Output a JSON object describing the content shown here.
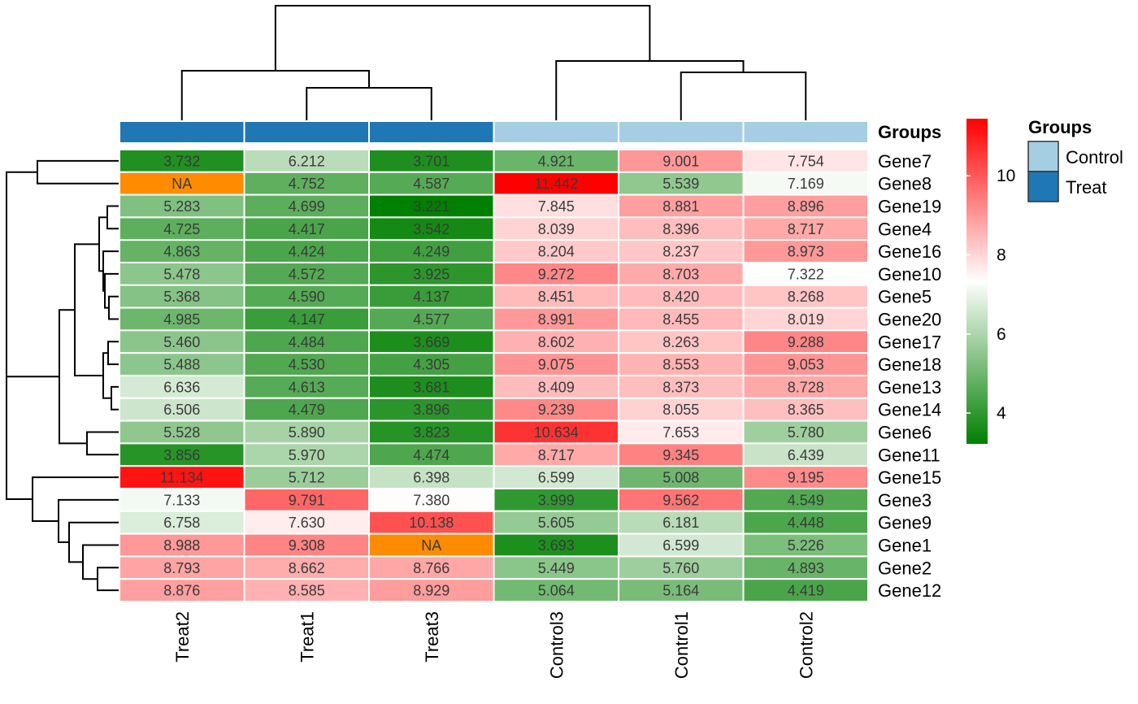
{
  "chart_data": {
    "type": "heatmap",
    "rows": [
      "Gene7",
      "Gene8",
      "Gene19",
      "Gene4",
      "Gene16",
      "Gene10",
      "Gene5",
      "Gene20",
      "Gene17",
      "Gene18",
      "Gene13",
      "Gene14",
      "Gene6",
      "Gene11",
      "Gene15",
      "Gene3",
      "Gene9",
      "Gene1",
      "Gene2",
      "Gene12"
    ],
    "columns": [
      "Treat2",
      "Treat1",
      "Treat3",
      "Control3",
      "Control1",
      "Control2"
    ],
    "values": [
      [
        3.732,
        6.212,
        3.701,
        4.921,
        9.001,
        7.754
      ],
      [
        null,
        4.752,
        4.587,
        11.442,
        5.539,
        7.169
      ],
      [
        5.283,
        4.699,
        3.221,
        7.845,
        8.881,
        8.896
      ],
      [
        4.725,
        4.417,
        3.542,
        8.039,
        8.396,
        8.717
      ],
      [
        4.863,
        4.424,
        4.249,
        8.204,
        8.237,
        8.973
      ],
      [
        5.478,
        4.572,
        3.925,
        9.272,
        8.703,
        7.322
      ],
      [
        5.368,
        4.59,
        4.137,
        8.451,
        8.42,
        8.268
      ],
      [
        4.985,
        4.147,
        4.577,
        8.991,
        8.455,
        8.019
      ],
      [
        5.46,
        4.484,
        3.669,
        8.602,
        8.263,
        9.288
      ],
      [
        5.488,
        4.53,
        4.305,
        9.075,
        8.553,
        9.053
      ],
      [
        6.636,
        4.613,
        3.681,
        8.409,
        8.373,
        8.728
      ],
      [
        6.506,
        4.479,
        3.896,
        9.239,
        8.055,
        8.365
      ],
      [
        5.528,
        5.89,
        3.823,
        10.634,
        7.653,
        5.78
      ],
      [
        3.856,
        5.97,
        4.474,
        8.717,
        9.345,
        6.439
      ],
      [
        11.134,
        5.712,
        6.398,
        6.599,
        5.008,
        9.195
      ],
      [
        7.133,
        9.791,
        7.38,
        3.999,
        9.562,
        4.549
      ],
      [
        6.758,
        7.63,
        10.138,
        5.605,
        6.181,
        4.448
      ],
      [
        8.988,
        9.308,
        null,
        3.693,
        6.599,
        5.226
      ],
      [
        8.793,
        8.662,
        8.766,
        5.449,
        5.76,
        4.893
      ],
      [
        8.876,
        8.585,
        8.929,
        5.064,
        5.164,
        4.419
      ]
    ],
    "na_label": "NA",
    "na_color": "#ff8c00",
    "color_scale": {
      "low": "#008000",
      "mid": "#ffffff",
      "high": "#ff0000",
      "min": 3.221,
      "max": 11.442
    },
    "legend_ticks": [
      4,
      6,
      8,
      10
    ],
    "annotation": {
      "title": "Groups",
      "column_groups": [
        "Treat",
        "Treat",
        "Treat",
        "Control",
        "Control",
        "Control"
      ],
      "entries": [
        {
          "label": "Control",
          "color": "#a6cee3"
        },
        {
          "label": "Treat",
          "color": "#1f78b4"
        }
      ]
    },
    "legend_placement": "right",
    "grid": false
  }
}
